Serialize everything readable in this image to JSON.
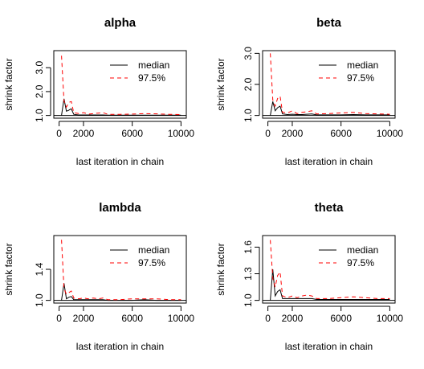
{
  "chart_data": [
    {
      "type": "line",
      "title": "alpha",
      "xlabel": "last iteration in chain",
      "ylabel": "shrink factor",
      "xlim": [
        0,
        10000
      ],
      "ylim": [
        1.0,
        3.6
      ],
      "xticks": [
        0,
        2000,
        6000,
        10000
      ],
      "yticks": [
        1.0,
        2.0,
        3.0
      ],
      "ytick_labels": [
        "1.0",
        "2.0",
        "3.0"
      ],
      "legend": {
        "position": "top-right",
        "entries": [
          "median",
          "97.5%"
        ]
      },
      "series": [
        {
          "name": "median",
          "color": "#000000",
          "dash": "solid",
          "x": [
            200,
            400,
            600,
            800,
            1000,
            1200,
            1600,
            2000,
            2400,
            2800,
            3200,
            3600,
            4000,
            5000,
            6000,
            7000,
            8000,
            9000,
            10000
          ],
          "y": [
            1.0,
            1.7,
            1.18,
            1.22,
            1.28,
            1.05,
            1.02,
            1.02,
            1.02,
            1.02,
            1.02,
            1.02,
            1.01,
            1.01,
            1.01,
            1.01,
            1.01,
            1.01,
            1.01
          ]
        },
        {
          "name": "97.5%",
          "color": "#ff0000",
          "dash": "dashed",
          "x": [
            200,
            400,
            600,
            800,
            1000,
            1200,
            1600,
            2000,
            2400,
            2800,
            3200,
            3600,
            4000,
            5000,
            6000,
            7000,
            8000,
            9000,
            10000
          ],
          "y": [
            3.5,
            1.6,
            1.35,
            1.55,
            1.58,
            1.12,
            1.08,
            1.12,
            1.06,
            1.08,
            1.1,
            1.12,
            1.05,
            1.05,
            1.06,
            1.08,
            1.07,
            1.05,
            1.04
          ]
        }
      ]
    },
    {
      "type": "line",
      "title": "beta",
      "xlabel": "last iteration in chain",
      "ylabel": "shrink factor",
      "xlim": [
        0,
        10000
      ],
      "ylim": [
        1.0,
        3.0
      ],
      "xticks": [
        0,
        2000,
        6000,
        10000
      ],
      "yticks": [
        1.0,
        2.0,
        3.0
      ],
      "ytick_labels": [
        "1.0",
        "2.0",
        "3.0"
      ],
      "legend": {
        "position": "top-right",
        "entries": [
          "median",
          "97.5%"
        ]
      },
      "series": [
        {
          "name": "median",
          "color": "#000000",
          "dash": "solid",
          "x": [
            200,
            400,
            600,
            800,
            1000,
            1200,
            1600,
            2000,
            2400,
            2800,
            3200,
            3600,
            4000,
            5000,
            6000,
            7000,
            8000,
            9000,
            10000
          ],
          "y": [
            1.0,
            1.45,
            1.15,
            1.25,
            1.3,
            1.05,
            1.03,
            1.04,
            1.03,
            1.03,
            1.04,
            1.05,
            1.02,
            1.02,
            1.02,
            1.03,
            1.02,
            1.02,
            1.02
          ]
        },
        {
          "name": "97.5%",
          "color": "#ff0000",
          "dash": "dashed",
          "x": [
            200,
            400,
            600,
            800,
            1000,
            1200,
            1600,
            2000,
            2400,
            2800,
            3200,
            3600,
            4000,
            5000,
            6000,
            7000,
            8000,
            9000,
            10000
          ],
          "y": [
            3.0,
            1.5,
            1.3,
            1.55,
            1.62,
            1.1,
            1.08,
            1.15,
            1.06,
            1.1,
            1.12,
            1.15,
            1.05,
            1.06,
            1.08,
            1.1,
            1.06,
            1.05,
            1.04
          ]
        }
      ]
    },
    {
      "type": "line",
      "title": "lambda",
      "xlabel": "last iteration in chain",
      "ylabel": "shrink factor",
      "xlim": [
        0,
        10000
      ],
      "ylim": [
        1.0,
        1.8
      ],
      "xticks": [
        0,
        2000,
        6000,
        10000
      ],
      "yticks": [
        1.0,
        1.4
      ],
      "ytick_labels": [
        "1.0",
        "1.4"
      ],
      "legend": {
        "position": "top-right",
        "entries": [
          "median",
          "97.5%"
        ]
      },
      "series": [
        {
          "name": "median",
          "color": "#000000",
          "dash": "solid",
          "x": [
            200,
            400,
            600,
            800,
            1000,
            1200,
            1600,
            2000,
            2400,
            2800,
            3200,
            3600,
            4000,
            5000,
            6000,
            7000,
            8000,
            9000,
            10000
          ],
          "y": [
            1.0,
            1.22,
            1.02,
            1.04,
            1.05,
            1.01,
            1.01,
            1.01,
            1.01,
            1.01,
            1.01,
            1.01,
            1.0,
            1.0,
            1.0,
            1.01,
            1.0,
            1.0,
            1.0
          ]
        },
        {
          "name": "97.5%",
          "color": "#ff0000",
          "dash": "dashed",
          "x": [
            200,
            400,
            600,
            800,
            1000,
            1200,
            1600,
            2000,
            2400,
            2800,
            3200,
            3600,
            4000,
            5000,
            6000,
            7000,
            8000,
            9000,
            10000
          ],
          "y": [
            1.78,
            1.15,
            1.08,
            1.1,
            1.12,
            1.03,
            1.02,
            1.03,
            1.02,
            1.03,
            1.02,
            1.03,
            1.01,
            1.01,
            1.02,
            1.02,
            1.02,
            1.01,
            1.01
          ]
        }
      ]
    },
    {
      "type": "line",
      "title": "theta",
      "xlabel": "last iteration in chain",
      "ylabel": "shrink factor",
      "xlim": [
        0,
        10000
      ],
      "ylim": [
        1.0,
        1.7
      ],
      "xticks": [
        0,
        2000,
        6000,
        10000
      ],
      "yticks": [
        1.0,
        1.3,
        1.6
      ],
      "ytick_labels": [
        "1.0",
        "1.3",
        "1.6"
      ],
      "legend": {
        "position": "top-right",
        "entries": [
          "median",
          "97.5%"
        ]
      },
      "series": [
        {
          "name": "median",
          "color": "#000000",
          "dash": "solid",
          "x": [
            200,
            400,
            600,
            800,
            1000,
            1200,
            1600,
            2000,
            2400,
            2800,
            3200,
            3600,
            4000,
            5000,
            6000,
            7000,
            8000,
            9000,
            10000
          ],
          "y": [
            1.0,
            1.35,
            1.05,
            1.1,
            1.12,
            1.02,
            1.02,
            1.02,
            1.02,
            1.02,
            1.02,
            1.02,
            1.01,
            1.01,
            1.01,
            1.01,
            1.01,
            1.01,
            1.01
          ]
        },
        {
          "name": "97.5%",
          "color": "#ff0000",
          "dash": "dashed",
          "x": [
            200,
            400,
            600,
            800,
            1000,
            1200,
            1600,
            2000,
            2400,
            2800,
            3200,
            3600,
            4000,
            5000,
            6000,
            7000,
            8000,
            9000,
            10000
          ],
          "y": [
            1.68,
            1.25,
            1.15,
            1.28,
            1.32,
            1.05,
            1.03,
            1.05,
            1.03,
            1.05,
            1.06,
            1.05,
            1.02,
            1.02,
            1.03,
            1.04,
            1.03,
            1.02,
            1.02
          ]
        }
      ]
    }
  ]
}
